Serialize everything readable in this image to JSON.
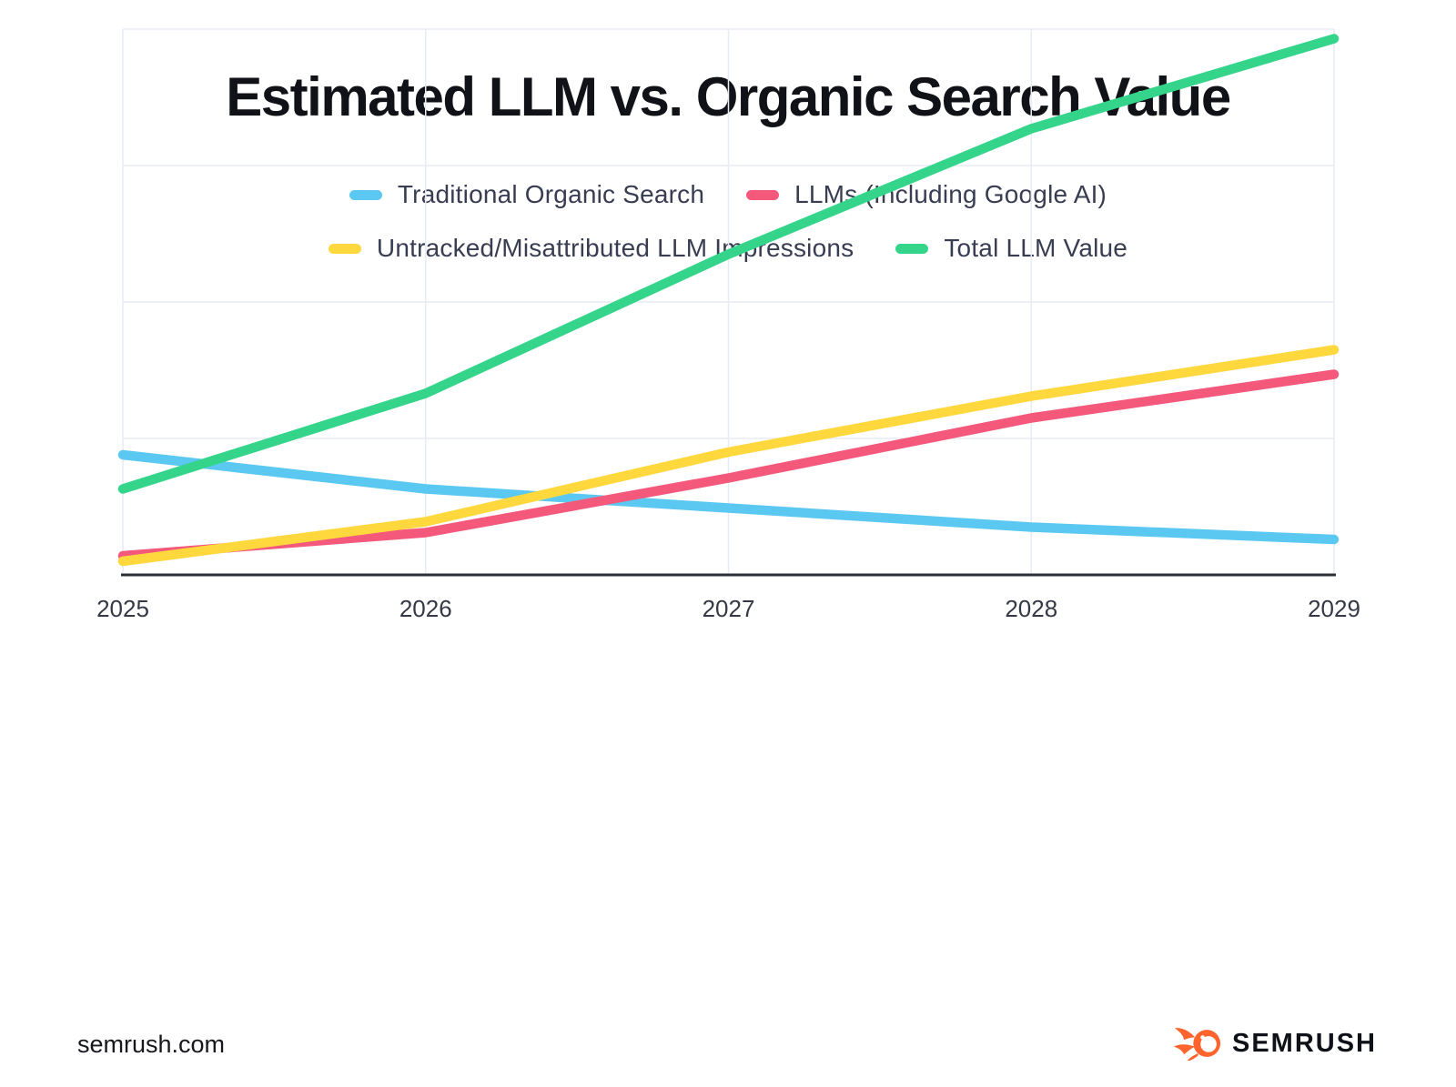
{
  "title": "Estimated LLM vs. Organic Search Value",
  "chart_data": {
    "type": "line",
    "title": "Estimated LLM vs. Organic Search Value",
    "x": [
      "2025",
      "2026",
      "2027",
      "2028",
      "2029"
    ],
    "series": [
      {
        "name": "Traditional Organic Search",
        "color": "#5BC8F2",
        "values": [
          0.88,
          0.63,
          0.49,
          0.35,
          0.26
        ]
      },
      {
        "name": "LLMs (Including Google AI)",
        "color": "#F4587B",
        "values": [
          0.14,
          0.31,
          0.71,
          1.15,
          1.47
        ]
      },
      {
        "name": "Untracked/Misattributed LLM Impressions",
        "color": "#FFD83D",
        "values": [
          0.1,
          0.39,
          0.9,
          1.31,
          1.65
        ]
      },
      {
        "name": "Total LLM Value",
        "color": "#34D58B",
        "values": [
          0.63,
          1.33,
          2.35,
          3.27,
          3.93
        ]
      }
    ],
    "xlabel": "",
    "ylabel": "",
    "ylim": [
      0,
      4
    ],
    "y_axis": "unlabeled; horizontal gridlines every 1 relative unit",
    "grid": true,
    "legend_position": "top-center, two rows"
  },
  "footer": {
    "site": "semrush.com",
    "brand": "SEMRUSH"
  },
  "icons": {
    "brand_icon": "semrush-flame-icon"
  },
  "colors": {
    "background": "#FFFFFF",
    "grid": "#E7EBF3",
    "axis": "#2B2F3A",
    "title_text": "#101217",
    "legend_text": "#383D52",
    "tick_text": "#343945",
    "footer_text": "#16181D",
    "brand_orange": "#FF642D",
    "brand_text": "#0F1118"
  }
}
